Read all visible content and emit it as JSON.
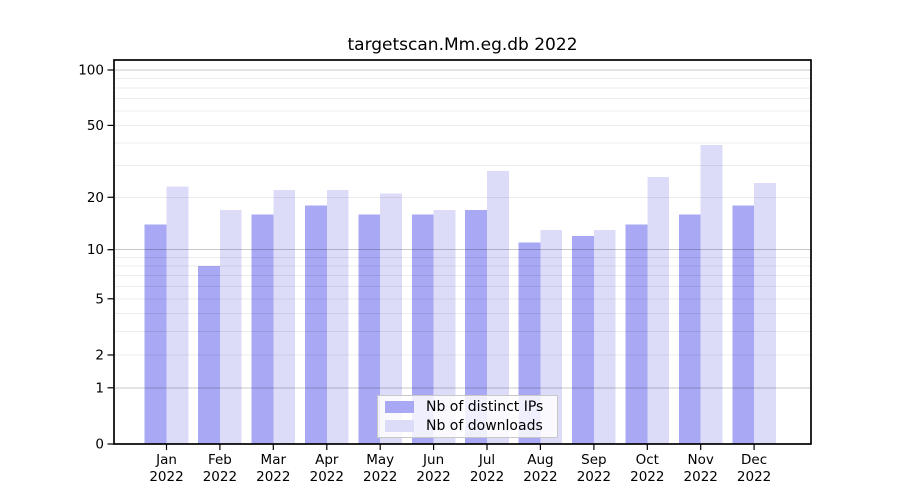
{
  "figure": {
    "background": "#ffffff",
    "frame_color": "#000000",
    "text_color": "#000000"
  },
  "chart_data": {
    "type": "bar",
    "title": "targetscan.Mm.eg.db 2022",
    "categories": [
      "Jan",
      "Feb",
      "Mar",
      "Apr",
      "May",
      "Jun",
      "Jul",
      "Aug",
      "Sep",
      "Oct",
      "Nov",
      "Dec"
    ],
    "x_tick_year": "2022",
    "series": [
      {
        "name": "Nb of distinct IPs",
        "color": "#a8a8f5",
        "values": [
          14,
          8,
          16,
          18,
          16,
          16,
          17,
          11,
          12,
          14,
          16,
          18
        ]
      },
      {
        "name": "Nb of downloads",
        "color": "#dcdcf8",
        "values": [
          23,
          17,
          22,
          22,
          21,
          17,
          28,
          13,
          13,
          26,
          39,
          24
        ]
      }
    ],
    "y_axis": {
      "scale": "log1p",
      "tick_values": [
        100,
        50,
        20,
        10,
        5,
        2,
        1,
        0
      ],
      "range": [
        0,
        113
      ]
    },
    "grid": {
      "major_at": [
        1,
        10,
        100
      ],
      "minor_at": [
        2,
        3,
        4,
        5,
        6,
        7,
        8,
        9,
        20,
        30,
        40,
        50,
        60,
        70,
        80,
        90
      ],
      "major_color": "#c9c9c9",
      "minor_color": "#ececec"
    },
    "legend": {
      "position": "bottom-center-inside"
    }
  }
}
